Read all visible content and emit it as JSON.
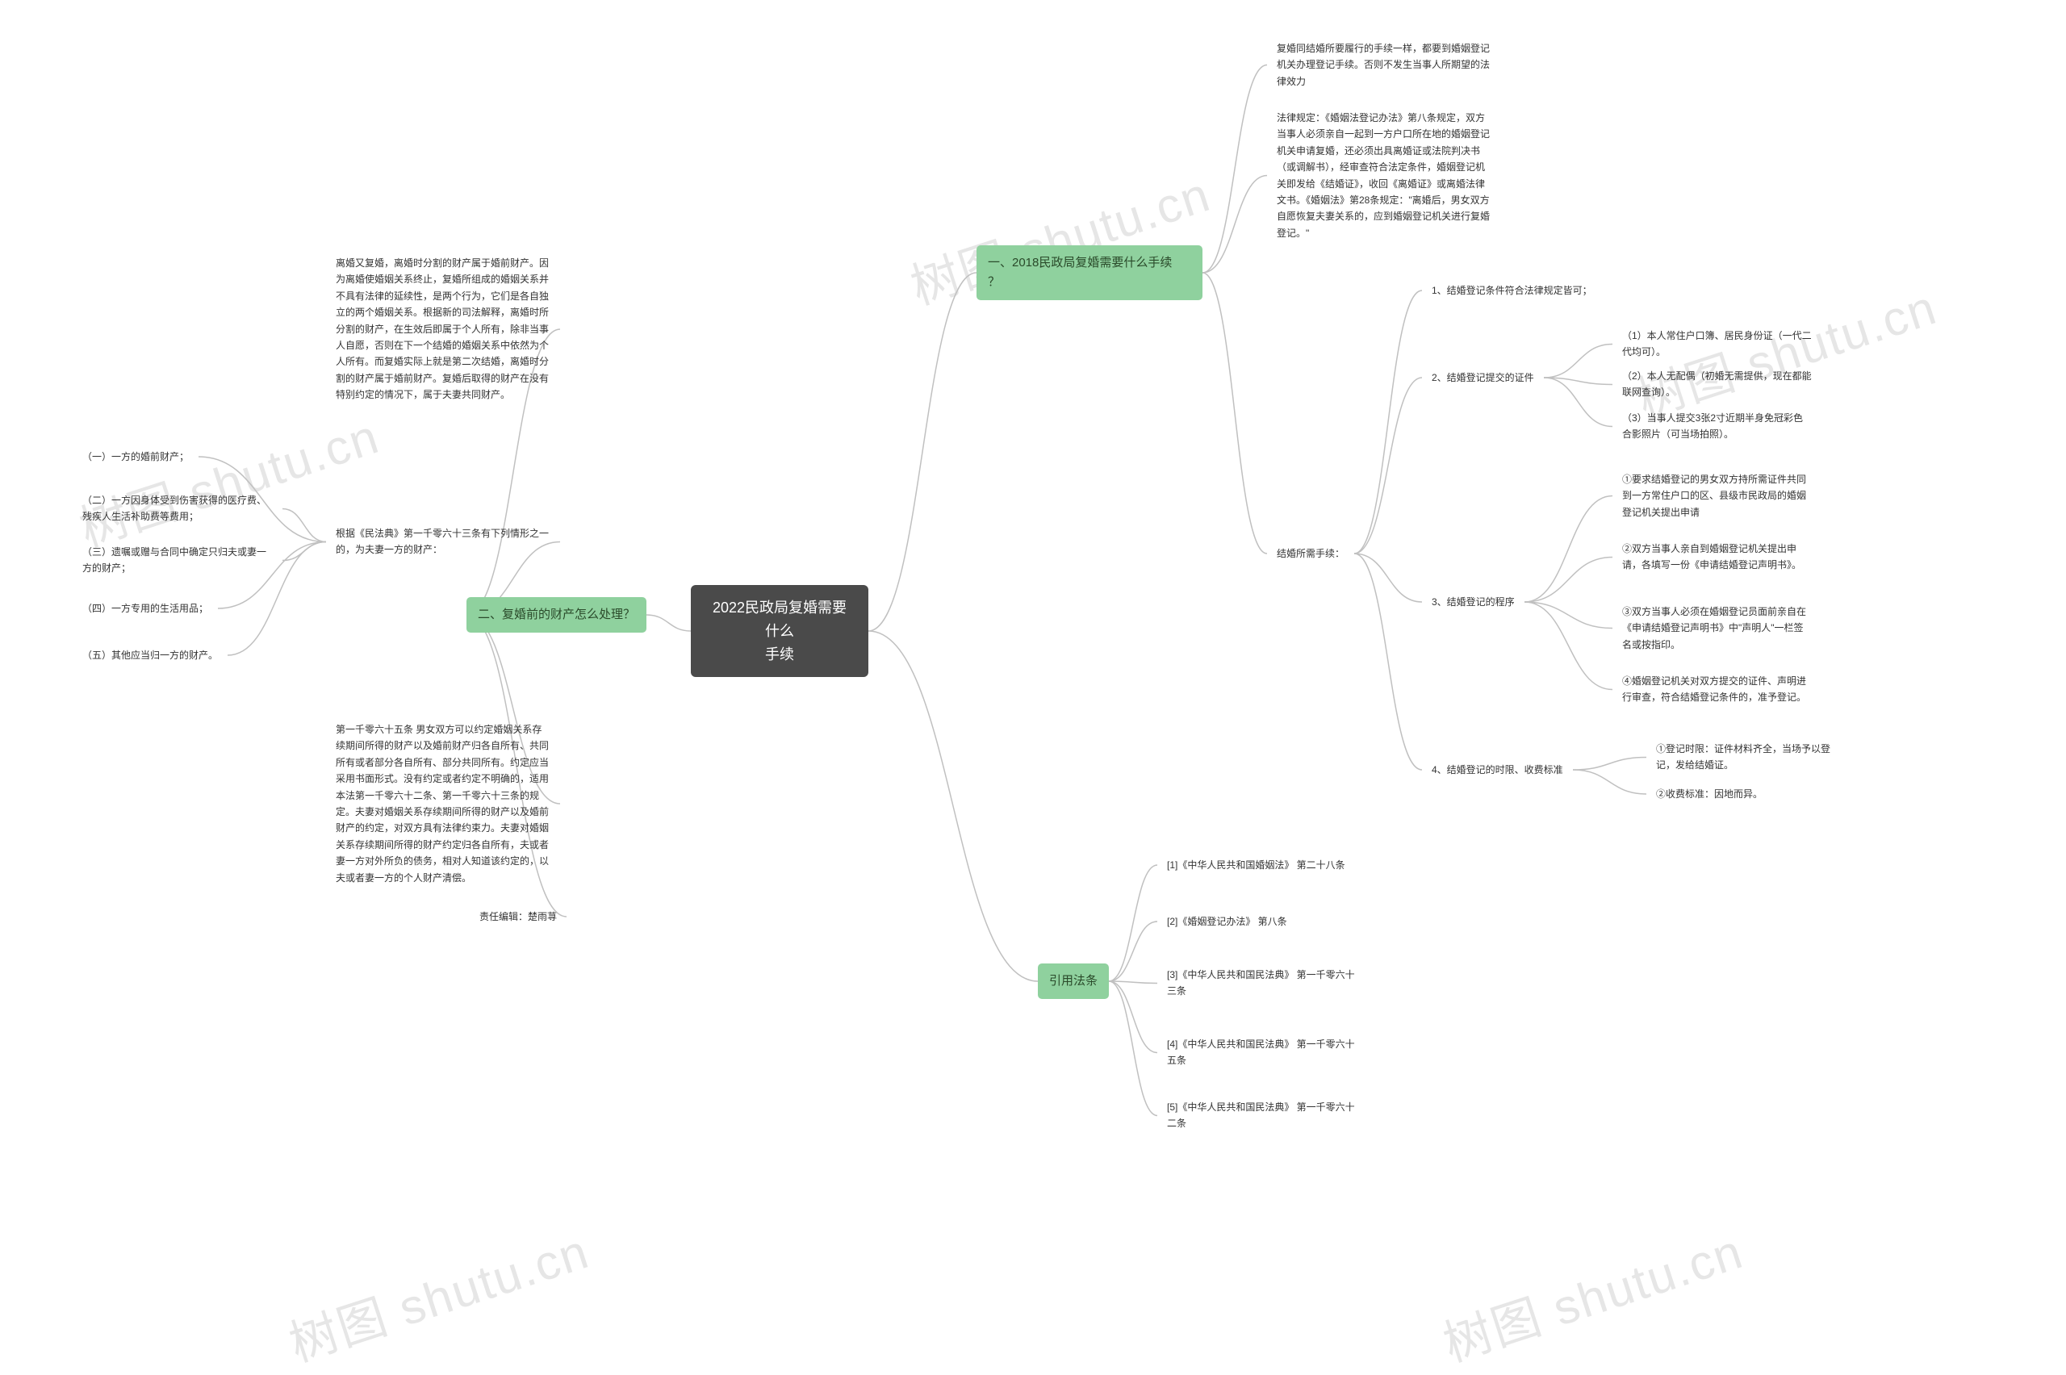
{
  "colors": {
    "background": "#ffffff",
    "root_bg": "#4a4a4a",
    "root_text": "#ffffff",
    "branch_bg": "#8fd19e",
    "branch_text": "#2a4a2a",
    "leaf_text": "#333333",
    "connector": "#c0c0c0",
    "watermark": "#e6e6e6"
  },
  "fonts": {
    "root_size": 18,
    "branch_size": 15,
    "leaf_size": 12
  },
  "watermark_text": "树图 shutu.cn",
  "root": {
    "title_line1": "2022民政局复婚需要什么",
    "title_line2": "手续"
  },
  "section1": {
    "title_line1": "一、2018民政局复婚需要什么手续",
    "title_line2": "？",
    "item1": "复婚同结婚所要履行的手续一样，都要到婚姻登记机关办理登记手续。否则不发生当事人所期望的法律效力",
    "item2": "法律规定：《婚姻法登记办法》第八条规定，双方当事人必须亲自一起到一方户口所在地的婚姻登记机关申请复婚，还必须出具离婚证或法院判决书（或调解书），经审查符合法定条件，婚姻登记机关即发给《结婚证》，收回《离婚证》或离婚法律文书。《婚姻法》第28条规定：\"离婚后，男女双方自愿恢复夫妻关系的，应到婚姻登记机关进行复婚登记。\"",
    "sub": {
      "title": "结婚所需手续：",
      "s1": {
        "label": "1、结婚登记条件符合法律规定皆可；",
        "s2_label": "2、结婚登记提交的证件",
        "s2_a": "（1）本人常住户口簿、居民身份证（一代二代均可）。",
        "s2_b": "（2）本人无配偶（初婚无需提供，现在都能联网查询）。",
        "s2_c": "（3）当事人提交3张2寸近期半身免冠彩色合影照片（可当场拍照）。"
      },
      "s3": {
        "label": "3、结婚登记的程序",
        "a": "①要求结婚登记的男女双方持所需证件共同到一方常住户口的区、县级市民政局的婚姻登记机关提出申请",
        "b": "②双方当事人亲自到婚姻登记机关提出申请，各填写一份《申请结婚登记声明书》。",
        "c": "③双方当事人必须在婚姻登记员面前亲自在《申请结婚登记声明书》中\"声明人\"一栏签名或按指印。",
        "d": "④婚姻登记机关对双方提交的证件、声明进行审查，符合结婚登记条件的，准予登记。"
      },
      "s4": {
        "label": "4、结婚登记的时限、收费标准",
        "a": "①登记时限：证件材料齐全，当场予以登记，发给结婚证。",
        "b": "②收费标准：因地而异。"
      }
    }
  },
  "section2": {
    "title": "二、复婚前的财产怎么处理？",
    "para1": "离婚又复婚，离婚时分割的财产属于婚前财产。因为离婚使婚姻关系终止，复婚所组成的婚姻关系并不具有法律的延续性，是两个行为，它们是各自独立的两个婚姻关系。根据新的司法解释，离婚时所分割的财产，在生效后即属于个人所有，除非当事人自愿，否则在下一个结婚的婚姻关系中依然为个人所有。而复婚实际上就是第二次结婚，离婚时分割的财产属于婚前财产。复婚后取得的财产在没有特别约定的情况下，属于夫妻共同财产。",
    "para2_label": "根据《民法典》第一千零六十三条有下列情形之一的，为夫妻一方的财产：",
    "para2_items": {
      "a": "（一）一方的婚前财产；",
      "b": "（二）一方因身体受到伤害获得的医疗费、残疾人生活补助费等费用；",
      "c": "（三）遗嘱或赠与合同中确定只归夫或妻一方的财产；",
      "d": "（四）一方专用的生活用品；",
      "e": "（五）其他应当归一方的财产。"
    },
    "para3": "第一千零六十五条 男女双方可以约定婚姻关系存续期间所得的财产以及婚前财产归各自所有、共同所有或者部分各自所有、部分共同所有。约定应当采用书面形式。没有约定或者约定不明确的，适用本法第一千零六十二条、第一千零六十三条的规定。夫妻对婚姻关系存续期间所得的财产以及婚前财产的约定，对双方具有法律约束力。夫妻对婚姻关系存续期间所得的财产约定归各自所有，夫或者妻一方对外所负的债务，相对人知道该约定的，以夫或者妻一方的个人财产清偿。",
    "editor": "责任编辑：楚雨荨"
  },
  "refs": {
    "title": "引用法条",
    "r1": "[1]《中华人民共和国婚姻法》 第二十八条",
    "r2": "[2]《婚姻登记办法》 第八条",
    "r3": "[3]《中华人民共和国民法典》 第一千零六十三条",
    "r4": "[4]《中华人民共和国民法典》 第一千零六十五条",
    "r5": "[5]《中华人民共和国民法典》 第一千零六十二条"
  }
}
